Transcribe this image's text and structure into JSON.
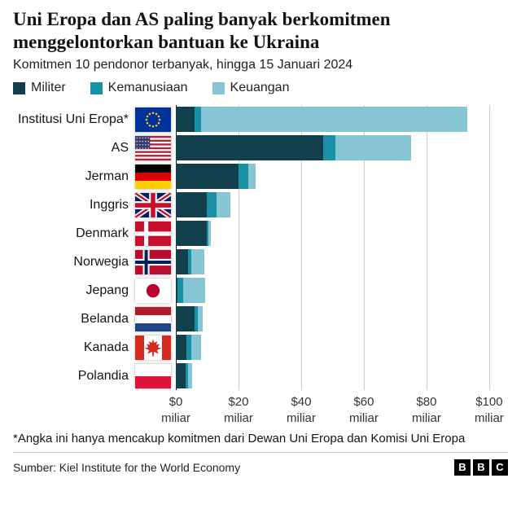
{
  "header": {
    "title": "Uni Eropa dan AS paling banyak berkomitmen menggelontorkan bantuan ke Ukraina",
    "subtitle": "Komitmen 10 pendonor terbanyak, hingga 15 Januari 2024"
  },
  "chart_data": {
    "type": "bar",
    "orientation": "horizontal",
    "stacked": true,
    "title": "Uni Eropa dan AS paling banyak berkomitmen menggelontorkan bantuan ke Ukraina",
    "subtitle": "Komitmen 10 pendonor terbanyak, hingga 15 Januari 2024",
    "unit": "US$ miliar",
    "xlim": [
      0,
      106
    ],
    "x_ticks": [
      0,
      20,
      40,
      60,
      80,
      100
    ],
    "tick_prefix": "$",
    "tick_unit": "miliar",
    "grid": true,
    "legend_position": "top",
    "categories": [
      "Institusi Uni Eropa*",
      "AS",
      "Jerman",
      "Inggris",
      "Denmark",
      "Norwegia",
      "Jepang",
      "Belanda",
      "Kanada",
      "Polandia"
    ],
    "flags": [
      "eu",
      "us",
      "de",
      "gb",
      "dk",
      "no",
      "jp",
      "nl",
      "ca",
      "pl"
    ],
    "series": [
      {
        "name": "Militer",
        "color": "#123f4c",
        "values": [
          6,
          47,
          20,
          10,
          10,
          4,
          0.4,
          6,
          3.5,
          3
        ]
      },
      {
        "name": "Kemanusiaan",
        "color": "#1a90a6",
        "values": [
          2,
          4,
          3,
          3,
          0.5,
          1,
          2,
          1,
          1.5,
          1
        ]
      },
      {
        "name": "Keuangan",
        "color": "#86c5d3",
        "values": [
          85,
          24,
          2.5,
          4.5,
          0.8,
          4,
          7,
          1.5,
          3,
          1.3
        ]
      }
    ]
  },
  "footnote": "*Angka ini hanya mencakup komitmen dari Dewan Uni Eropa dan Komisi Uni Eropa",
  "footer": {
    "source": "Sumber: Kiel Institute for the World Economy",
    "logo_letters": [
      "B",
      "B",
      "C"
    ]
  }
}
